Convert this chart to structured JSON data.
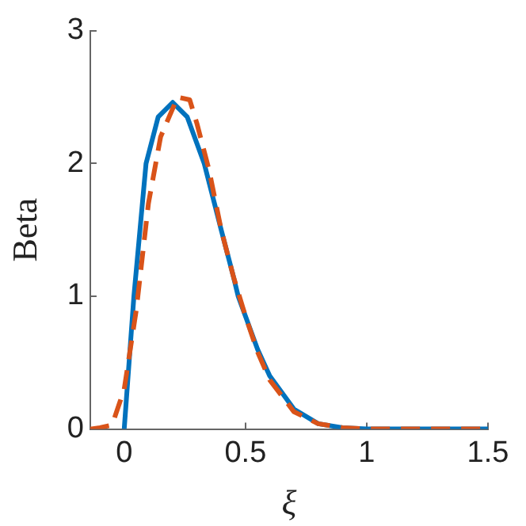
{
  "chart_data": {
    "type": "line",
    "xlabel": "ξ",
    "ylabel": "Beta",
    "xlim": [
      -0.14,
      1.5
    ],
    "ylim": [
      0,
      3
    ],
    "xticks": [
      0,
      0.5,
      1,
      1.5
    ],
    "yticks": [
      0,
      1,
      2,
      3
    ],
    "grid": false,
    "legend": false,
    "marker": "none",
    "series": [
      {
        "color": "#d95319",
        "line_style": "dashed",
        "x": [
          -0.14,
          -0.1,
          -0.05,
          0,
          0.05,
          0.1,
          0.15,
          0.22,
          0.27,
          0.3,
          0.35,
          0.4,
          0.45,
          0.5,
          0.55,
          0.6,
          0.7,
          0.8,
          0.9,
          1,
          1.5
        ],
        "values": [
          0,
          0.01,
          0.03,
          0.3,
          0.9,
          1.7,
          2.2,
          2.5,
          2.48,
          2.3,
          1.95,
          1.5,
          1.15,
          0.85,
          0.58,
          0.37,
          0.13,
          0.04,
          0.01,
          0,
          0
        ]
      },
      {
        "color": "#0072bd",
        "line_style": "solid",
        "x": [
          0,
          0.02,
          0.04,
          0.06,
          0.09,
          0.14,
          0.2,
          0.26,
          0.33,
          0.4,
          0.45,
          0.47,
          0.55,
          0.6,
          0.7,
          0.8,
          0.9,
          1,
          1.5
        ],
        "values": [
          0,
          0.5,
          1.0,
          1.4,
          2.0,
          2.35,
          2.46,
          2.35,
          2.0,
          1.5,
          1.15,
          1.0,
          0.6,
          0.4,
          0.15,
          0.04,
          0.01,
          0,
          0
        ]
      }
    ]
  }
}
